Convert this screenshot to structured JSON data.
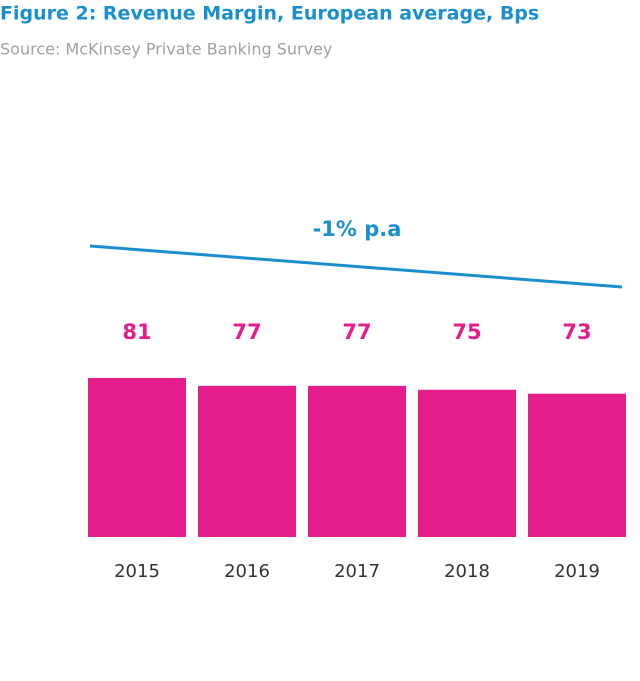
{
  "chart_data": {
    "type": "bar",
    "title": "Figure 2: Revenue Margin, European average, Bps",
    "subtitle": "Source: McKinsey Private Banking Survey",
    "annotation": "-1% p.a",
    "categories": [
      "2015",
      "2016",
      "2017",
      "2018",
      "2019"
    ],
    "values": [
      81,
      77,
      77,
      75,
      73
    ],
    "color": "#e61e8c",
    "trend_color": "#1a8fd0"
  }
}
